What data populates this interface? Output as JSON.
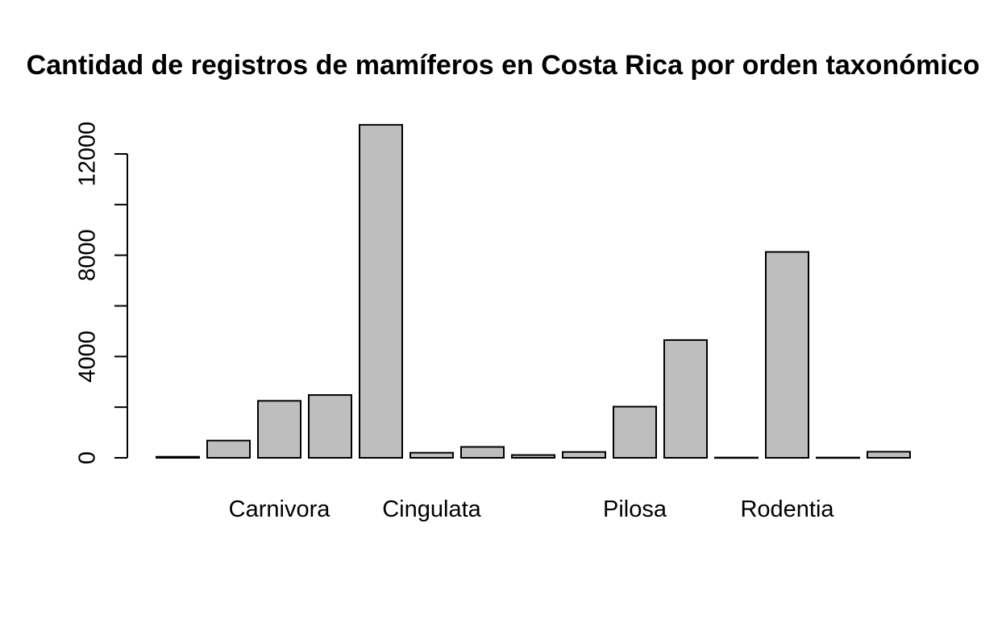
{
  "chart_data": {
    "type": "bar",
    "title": "Cantidad de registros de mamíferos en Costa Rica por orden taxonómico",
    "xlabel": "",
    "ylabel": "",
    "ylim": [
      0,
      13200
    ],
    "y_ticks": [
      0,
      4000,
      8000,
      12000
    ],
    "categories": [
      "",
      "",
      "Carnivora",
      "",
      "",
      "Cingulata",
      "",
      "",
      "",
      "Pilosa",
      "",
      "",
      "Rodentia",
      "",
      ""
    ],
    "values": [
      40,
      680,
      2250,
      2480,
      13150,
      200,
      430,
      110,
      230,
      2020,
      4650,
      10,
      8130,
      10,
      240
    ],
    "bar_fill": "#bebebe",
    "bar_stroke": "#000000"
  }
}
